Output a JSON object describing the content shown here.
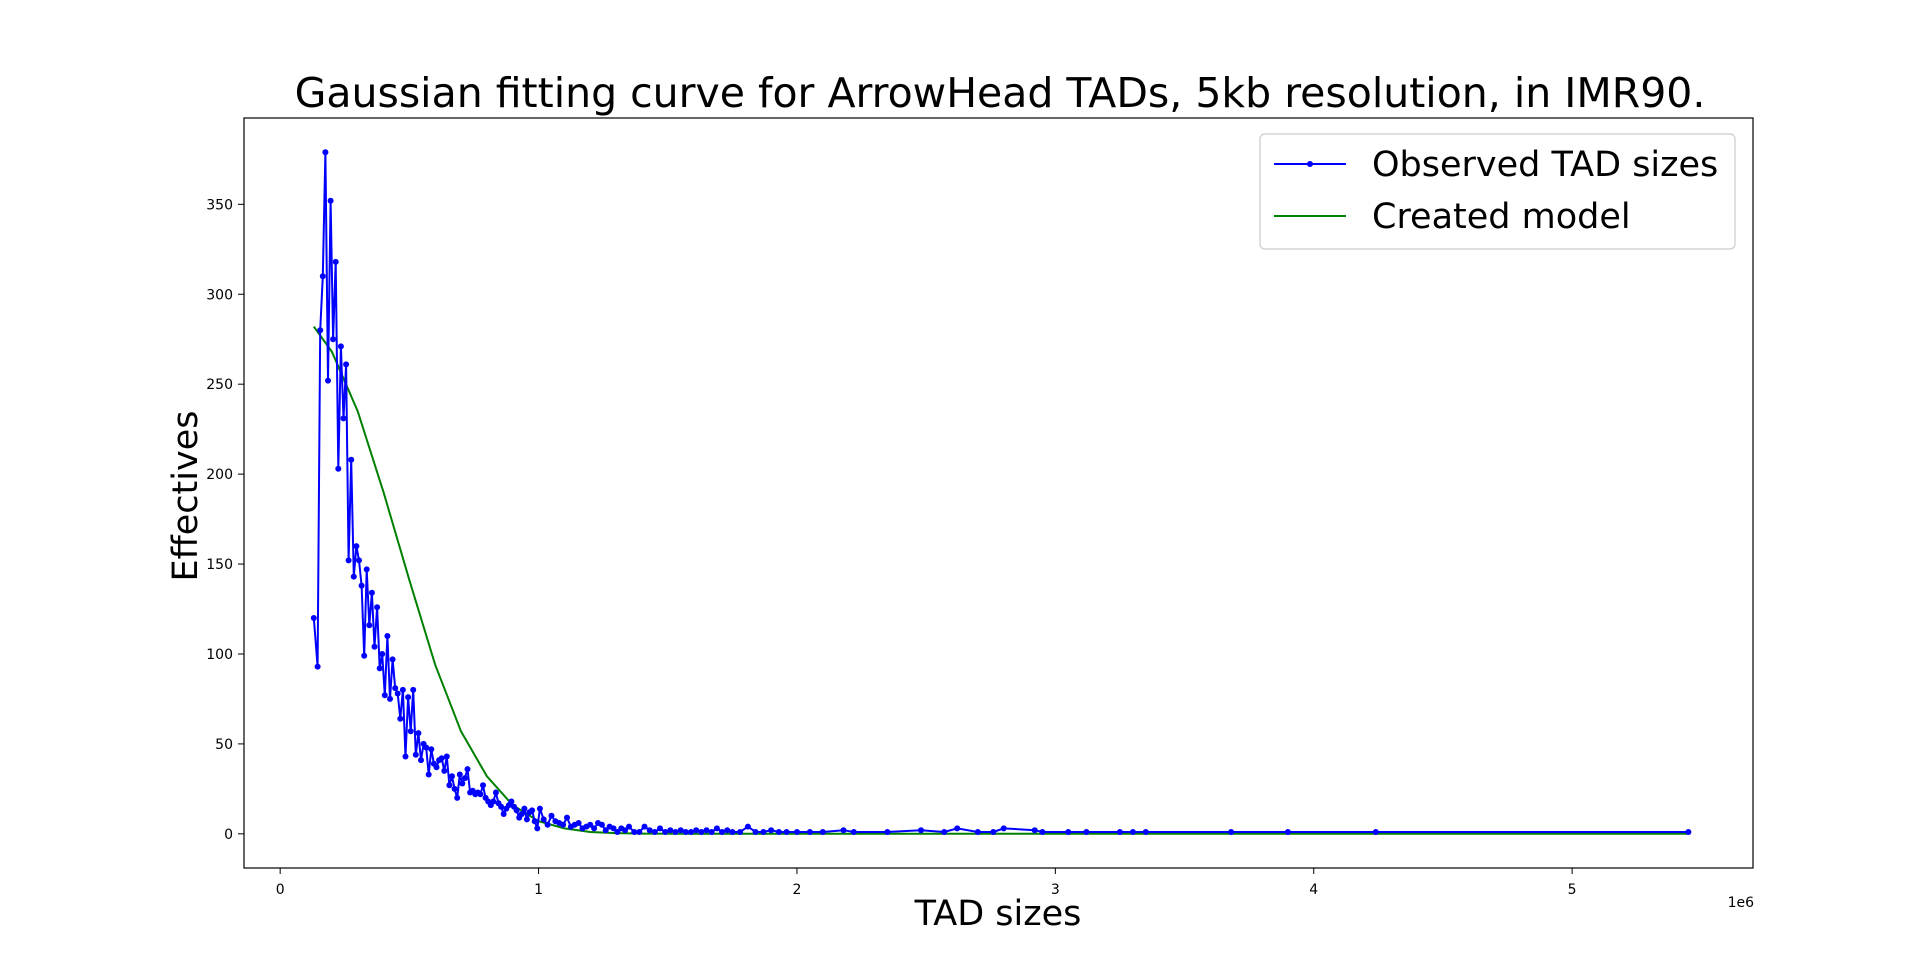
{
  "chart_data": {
    "type": "line",
    "title": "Gaussian fitting curve for ArrowHead TADs, 5kb resolution, in IMR90.",
    "xlabel": "TAD sizes",
    "ylabel": "Effectives",
    "x_scale_label": "1e6",
    "xlim": [
      -0.14,
      5.7
    ],
    "ylim": [
      -19,
      398
    ],
    "x_ticks": [
      0,
      1,
      2,
      3,
      4,
      5
    ],
    "x_tick_labels": [
      "0",
      "1",
      "2",
      "3",
      "4",
      "5"
    ],
    "y_ticks": [
      0,
      50,
      100,
      150,
      200,
      250,
      300,
      350
    ],
    "y_tick_labels": [
      "0",
      "50",
      "100",
      "150",
      "200",
      "250",
      "300",
      "350"
    ],
    "grid": false,
    "legend_position": "top-right",
    "series": [
      {
        "name": "Observed TAD sizes",
        "color": "#0000ff",
        "style": "line-with-markers",
        "x": [
          0.13,
          0.145,
          0.155,
          0.165,
          0.175,
          0.185,
          0.195,
          0.205,
          0.215,
          0.225,
          0.235,
          0.245,
          0.255,
          0.265,
          0.275,
          0.285,
          0.295,
          0.305,
          0.315,
          0.325,
          0.335,
          0.345,
          0.355,
          0.365,
          0.375,
          0.385,
          0.395,
          0.405,
          0.415,
          0.425,
          0.435,
          0.445,
          0.455,
          0.465,
          0.475,
          0.485,
          0.495,
          0.505,
          0.515,
          0.525,
          0.535,
          0.545,
          0.555,
          0.565,
          0.575,
          0.585,
          0.595,
          0.605,
          0.615,
          0.625,
          0.635,
          0.645,
          0.655,
          0.665,
          0.675,
          0.685,
          0.695,
          0.705,
          0.715,
          0.725,
          0.735,
          0.745,
          0.755,
          0.765,
          0.775,
          0.785,
          0.795,
          0.805,
          0.815,
          0.825,
          0.835,
          0.845,
          0.855,
          0.865,
          0.875,
          0.885,
          0.895,
          0.905,
          0.915,
          0.925,
          0.935,
          0.945,
          0.955,
          0.965,
          0.975,
          0.985,
          0.995,
          1.005,
          1.02,
          1.035,
          1.05,
          1.065,
          1.08,
          1.095,
          1.11,
          1.125,
          1.14,
          1.155,
          1.17,
          1.185,
          1.2,
          1.215,
          1.23,
          1.245,
          1.26,
          1.275,
          1.29,
          1.305,
          1.32,
          1.335,
          1.35,
          1.37,
          1.39,
          1.41,
          1.43,
          1.45,
          1.47,
          1.49,
          1.51,
          1.53,
          1.55,
          1.57,
          1.59,
          1.61,
          1.63,
          1.65,
          1.67,
          1.69,
          1.71,
          1.73,
          1.75,
          1.78,
          1.81,
          1.84,
          1.87,
          1.9,
          1.93,
          1.96,
          2.0,
          2.05,
          2.1,
          2.18,
          2.22,
          2.35,
          2.48,
          2.57,
          2.62,
          2.7,
          2.76,
          2.8,
          2.92,
          2.95,
          3.05,
          3.12,
          3.25,
          3.3,
          3.35,
          3.68,
          3.9,
          4.24,
          5.45
        ],
        "y": [
          120,
          93,
          280,
          310,
          379,
          252,
          352,
          275,
          318,
          203,
          271,
          231,
          261,
          152,
          208,
          143,
          160,
          152,
          138,
          99,
          147,
          116,
          134,
          104,
          126,
          92,
          100,
          77,
          110,
          75,
          97,
          81,
          78,
          64,
          80,
          43,
          76,
          57,
          80,
          44,
          56,
          41,
          50,
          48,
          33,
          47,
          39,
          37,
          41,
          42,
          35,
          43,
          27,
          32,
          25,
          20,
          33,
          28,
          31,
          36,
          23,
          24,
          22,
          23,
          22,
          27,
          20,
          18,
          16,
          18,
          23,
          17,
          15,
          11,
          14,
          16,
          18,
          15,
          13,
          9,
          11,
          14,
          8,
          12,
          13,
          7,
          3,
          14,
          8,
          5,
          10,
          7,
          6,
          5,
          9,
          4,
          5,
          6,
          3,
          4,
          5,
          3,
          6,
          5,
          2,
          4,
          3,
          1,
          3,
          2,
          4,
          1,
          1,
          4,
          2,
          1,
          3,
          1,
          2,
          1,
          2,
          1,
          1,
          2,
          1,
          2,
          1,
          3,
          1,
          2,
          1,
          1,
          4,
          1,
          1,
          2,
          1,
          1,
          1,
          1,
          1,
          2,
          1,
          1,
          2,
          1,
          3,
          1,
          1,
          3,
          2,
          1,
          1,
          1,
          1,
          1,
          1,
          1,
          1,
          1,
          1
        ]
      },
      {
        "name": "Created model",
        "color": "#008000",
        "style": "line",
        "x": [
          0.13,
          0.2,
          0.3,
          0.4,
          0.5,
          0.6,
          0.7,
          0.8,
          0.9,
          1.0,
          1.1,
          1.2,
          1.3,
          1.4,
          1.6,
          1.8,
          2.0,
          2.5,
          3.0,
          3.5,
          4.0,
          4.5,
          5.0,
          5.45
        ],
        "y": [
          282,
          268,
          235,
          190,
          141,
          94,
          57,
          32,
          16,
          7,
          3,
          1,
          0.4,
          0.1,
          0,
          0,
          0,
          0,
          0,
          0,
          0,
          0,
          0,
          0
        ]
      }
    ]
  }
}
